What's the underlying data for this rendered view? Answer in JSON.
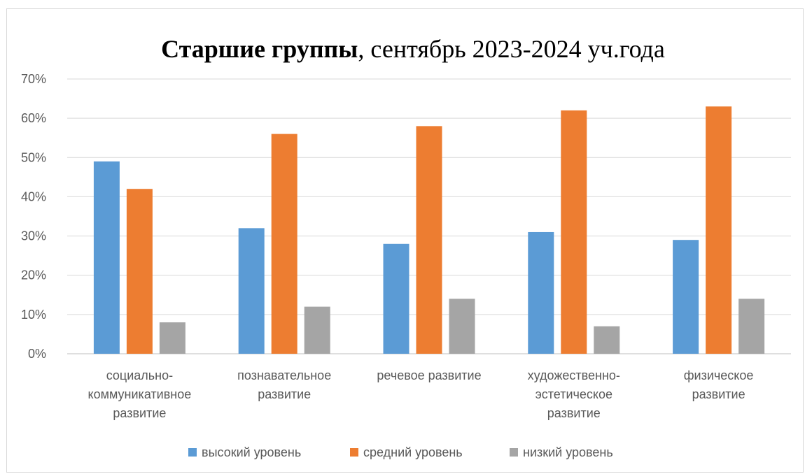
{
  "chart_data": {
    "type": "bar",
    "title_bold": "Старшие группы",
    "title_rest": ", сентябрь 2023-2024 уч.года",
    "categories": [
      [
        "социально-",
        "коммуникативное",
        "развитие"
      ],
      [
        "познавательное",
        "развитие"
      ],
      [
        "речевое развитие"
      ],
      [
        "художественно-",
        "эстетическое",
        "развитие"
      ],
      [
        "физическое",
        "развитие"
      ]
    ],
    "series": [
      {
        "name": "высокий уровень",
        "color": "#5b9bd5",
        "values": [
          49,
          32,
          28,
          31,
          29
        ]
      },
      {
        "name": "средний уровень",
        "color": "#ed7d31",
        "values": [
          42,
          56,
          58,
          62,
          63
        ]
      },
      {
        "name": "низкий уровень",
        "color": "#a5a5a5",
        "values": [
          8,
          12,
          14,
          7,
          14
        ]
      }
    ],
    "ylim": [
      0,
      70
    ],
    "yticks": [
      "0%",
      "10%",
      "20%",
      "30%",
      "40%",
      "50%",
      "60%",
      "70%"
    ],
    "grid": true,
    "legend": "bottom"
  }
}
